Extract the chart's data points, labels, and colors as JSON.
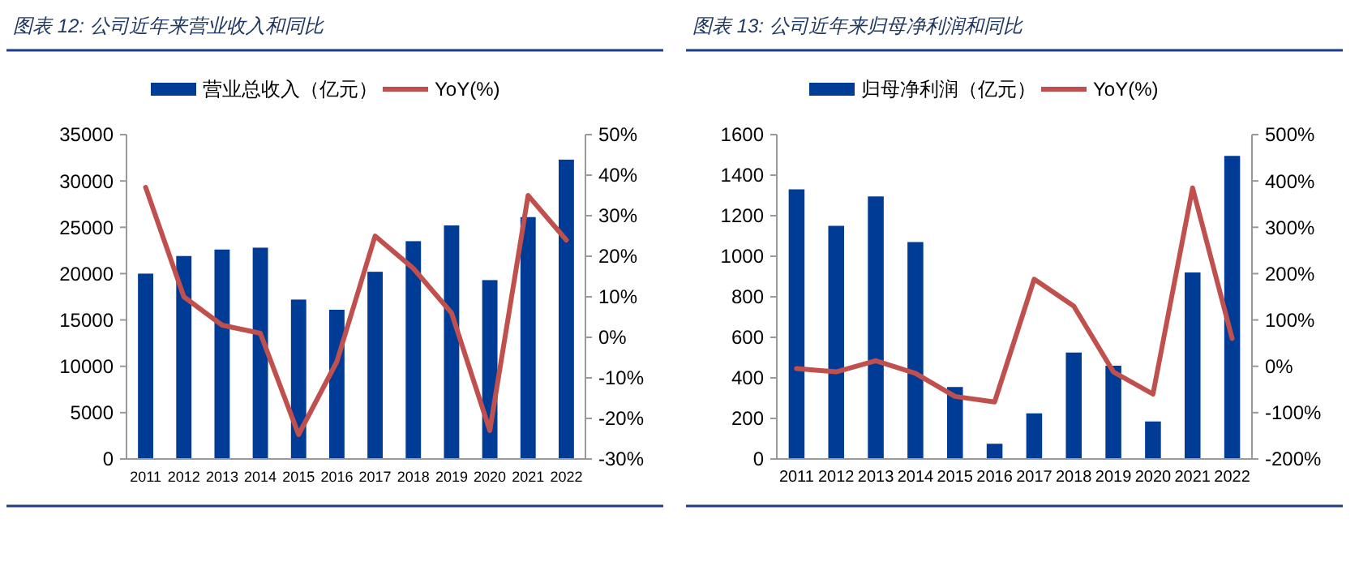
{
  "chart_data": [
    {
      "type": "bar",
      "title": "图表 12:  公司近年来营业收入和同比",
      "categories": [
        "2011",
        "2012",
        "2013",
        "2014",
        "2015",
        "2016",
        "2017",
        "2018",
        "2019",
        "2020",
        "2021",
        "2022"
      ],
      "series": [
        {
          "name": "营业总收入（亿元）",
          "color": "#003b95",
          "values": [
            20000,
            21900,
            22600,
            22800,
            17200,
            16100,
            20200,
            23500,
            25200,
            19300,
            26100,
            32300
          ]
        },
        {
          "name": "YoY(%)",
          "type": "line",
          "axis": "y2",
          "color": "#c0504d",
          "values": [
            37,
            10,
            3,
            1,
            -24,
            -6,
            25,
            17,
            6,
            -23,
            35,
            24
          ]
        }
      ],
      "ylim": [
        0,
        35000
      ],
      "yticks": [
        0,
        5000,
        10000,
        15000,
        20000,
        25000,
        30000,
        35000
      ],
      "y2lim": [
        -30,
        50
      ],
      "y2ticks": [
        {
          "value": -30,
          "label": "-30%"
        },
        {
          "value": -20,
          "label": "-20%"
        },
        {
          "value": -10,
          "label": "-10%"
        },
        {
          "value": 0,
          "label": "0%"
        },
        {
          "value": 10,
          "label": "10%"
        },
        {
          "value": 20,
          "label": "20%"
        },
        {
          "value": 30,
          "label": "30%"
        },
        {
          "value": 40,
          "label": "40%"
        },
        {
          "value": 50,
          "label": "50%"
        }
      ],
      "legend": "top",
      "grid": false,
      "marker": "none"
    },
    {
      "type": "bar",
      "title": "图表 13:  公司近年来归母净利润和同比",
      "categories": [
        "2011",
        "2012",
        "2013",
        "2014",
        "2015",
        "2016",
        "2017",
        "2018",
        "2019",
        "2020",
        "2021",
        "2022"
      ],
      "series": [
        {
          "name": "归母净利润（亿元）",
          "color": "#003b95",
          "values": [
            1330,
            1150,
            1295,
            1070,
            355,
            75,
            225,
            525,
            460,
            185,
            920,
            1495
          ]
        },
        {
          "name": "YoY(%)",
          "type": "line",
          "axis": "y2",
          "color": "#c0504d",
          "values": [
            -5,
            -12,
            12,
            -15,
            -65,
            -77,
            188,
            130,
            -12,
            -60,
            385,
            60
          ]
        }
      ],
      "ylim": [
        0,
        1600
      ],
      "yticks": [
        0,
        200,
        400,
        600,
        800,
        1000,
        1200,
        1400,
        1600
      ],
      "y2lim": [
        -200,
        500
      ],
      "y2ticks": [
        {
          "value": -200,
          "label": "-200%"
        },
        {
          "value": -100,
          "label": "-100%"
        },
        {
          "value": 0,
          "label": "0%"
        },
        {
          "value": 100,
          "label": "100%"
        },
        {
          "value": 200,
          "label": "200%"
        },
        {
          "value": 300,
          "label": "300%"
        },
        {
          "value": 400,
          "label": "400%"
        },
        {
          "value": 500,
          "label": "500%"
        }
      ],
      "legend": "top",
      "grid": false,
      "marker": "none"
    }
  ]
}
